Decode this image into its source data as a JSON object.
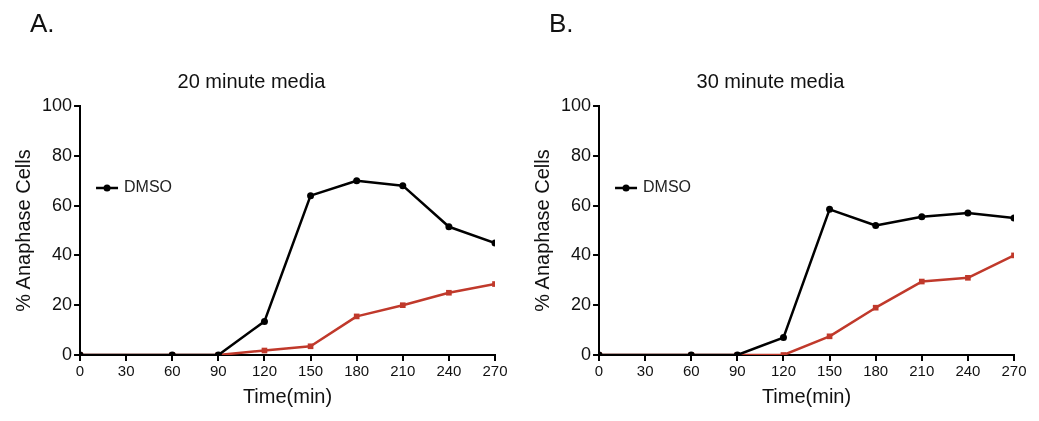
{
  "chart_data": [
    {
      "type": "line",
      "title": "20 minute media",
      "xlabel": "Time(min)",
      "ylabel": "% Anaphase Cells",
      "annotations": [
        "A."
      ],
      "x": [
        0,
        60,
        90,
        120,
        150,
        180,
        210,
        240,
        270
      ],
      "xlim": [
        0,
        270
      ],
      "xticks": [
        0,
        30,
        60,
        90,
        120,
        150,
        180,
        210,
        240,
        270
      ],
      "ylim": [
        0,
        100
      ],
      "yticks": [
        0,
        20,
        40,
        60,
        80,
        100
      ],
      "grid": false,
      "legend": "top left",
      "series": [
        {
          "name": "DMSO",
          "color": "#000000",
          "marker": "circle",
          "values": [
            0,
            0,
            0,
            13.5,
            64,
            70,
            68,
            51.5,
            45
          ]
        },
        {
          "color": "#c0392b",
          "marker": "square",
          "values": [
            0,
            0,
            0,
            1.8,
            3.5,
            15.5,
            20,
            25,
            28.5
          ]
        }
      ]
    },
    {
      "type": "line",
      "title": "30 minute media",
      "xlabel": "Time(min)",
      "ylabel": "% Anaphase Cells",
      "annotations": [
        "B."
      ],
      "x": [
        0,
        60,
        90,
        120,
        150,
        180,
        210,
        240,
        270
      ],
      "xlim": [
        0,
        270
      ],
      "xticks": [
        0,
        30,
        60,
        90,
        120,
        150,
        180,
        210,
        240,
        270
      ],
      "ylim": [
        0,
        100
      ],
      "yticks": [
        0,
        20,
        40,
        60,
        80,
        100
      ],
      "grid": false,
      "legend": "top left",
      "series": [
        {
          "name": "DMSO",
          "color": "#000000",
          "marker": "circle",
          "values": [
            0,
            0,
            0,
            7,
            58.5,
            52,
            55.5,
            57,
            55
          ]
        },
        {
          "color": "#c0392b",
          "marker": "square",
          "values": [
            0,
            0,
            0,
            0,
            7.5,
            19,
            29.5,
            31,
            40
          ]
        }
      ]
    }
  ]
}
